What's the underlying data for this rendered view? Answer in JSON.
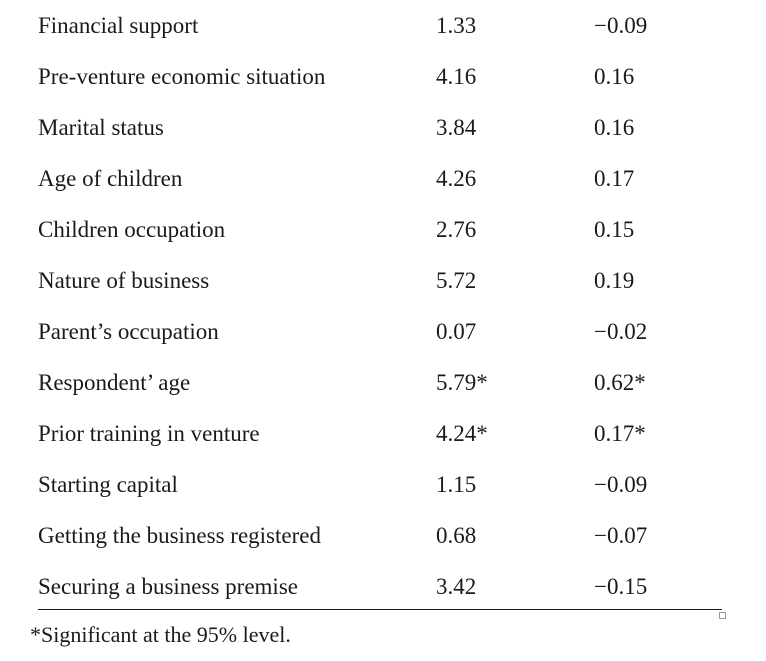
{
  "table": {
    "rows": [
      {
        "factor": "Financial support",
        "value_1": "1.33",
        "value_2": "−0.09"
      },
      {
        "factor": "Pre-venture economic situation",
        "value_1": "4.16",
        "value_2": "0.16"
      },
      {
        "factor": "Marital status",
        "value_1": "3.84",
        "value_2": "0.16"
      },
      {
        "factor": "Age of children",
        "value_1": "4.26",
        "value_2": "0.17"
      },
      {
        "factor": "Children occupation",
        "value_1": "2.76",
        "value_2": "0.15"
      },
      {
        "factor": "Nature of business",
        "value_1": "5.72",
        "value_2": "0.19"
      },
      {
        "factor": "Parent’s occupation",
        "value_1": "0.07",
        "value_2": "−0.02"
      },
      {
        "factor": "Respondent’ age",
        "value_1": "5.79*",
        "value_2": "0.62*"
      },
      {
        "factor": "Prior training in venture",
        "value_1": "4.24*",
        "value_2": "0.17*"
      },
      {
        "factor": "Starting capital",
        "value_1": "1.15",
        "value_2": "−0.09"
      },
      {
        "factor": "Getting the business registered",
        "value_1": "0.68",
        "value_2": "−0.07"
      },
      {
        "factor": "Securing a business premise",
        "value_1": "3.42",
        "value_2": "−0.15"
      }
    ]
  },
  "footnote": "*Significant at the 95% level."
}
